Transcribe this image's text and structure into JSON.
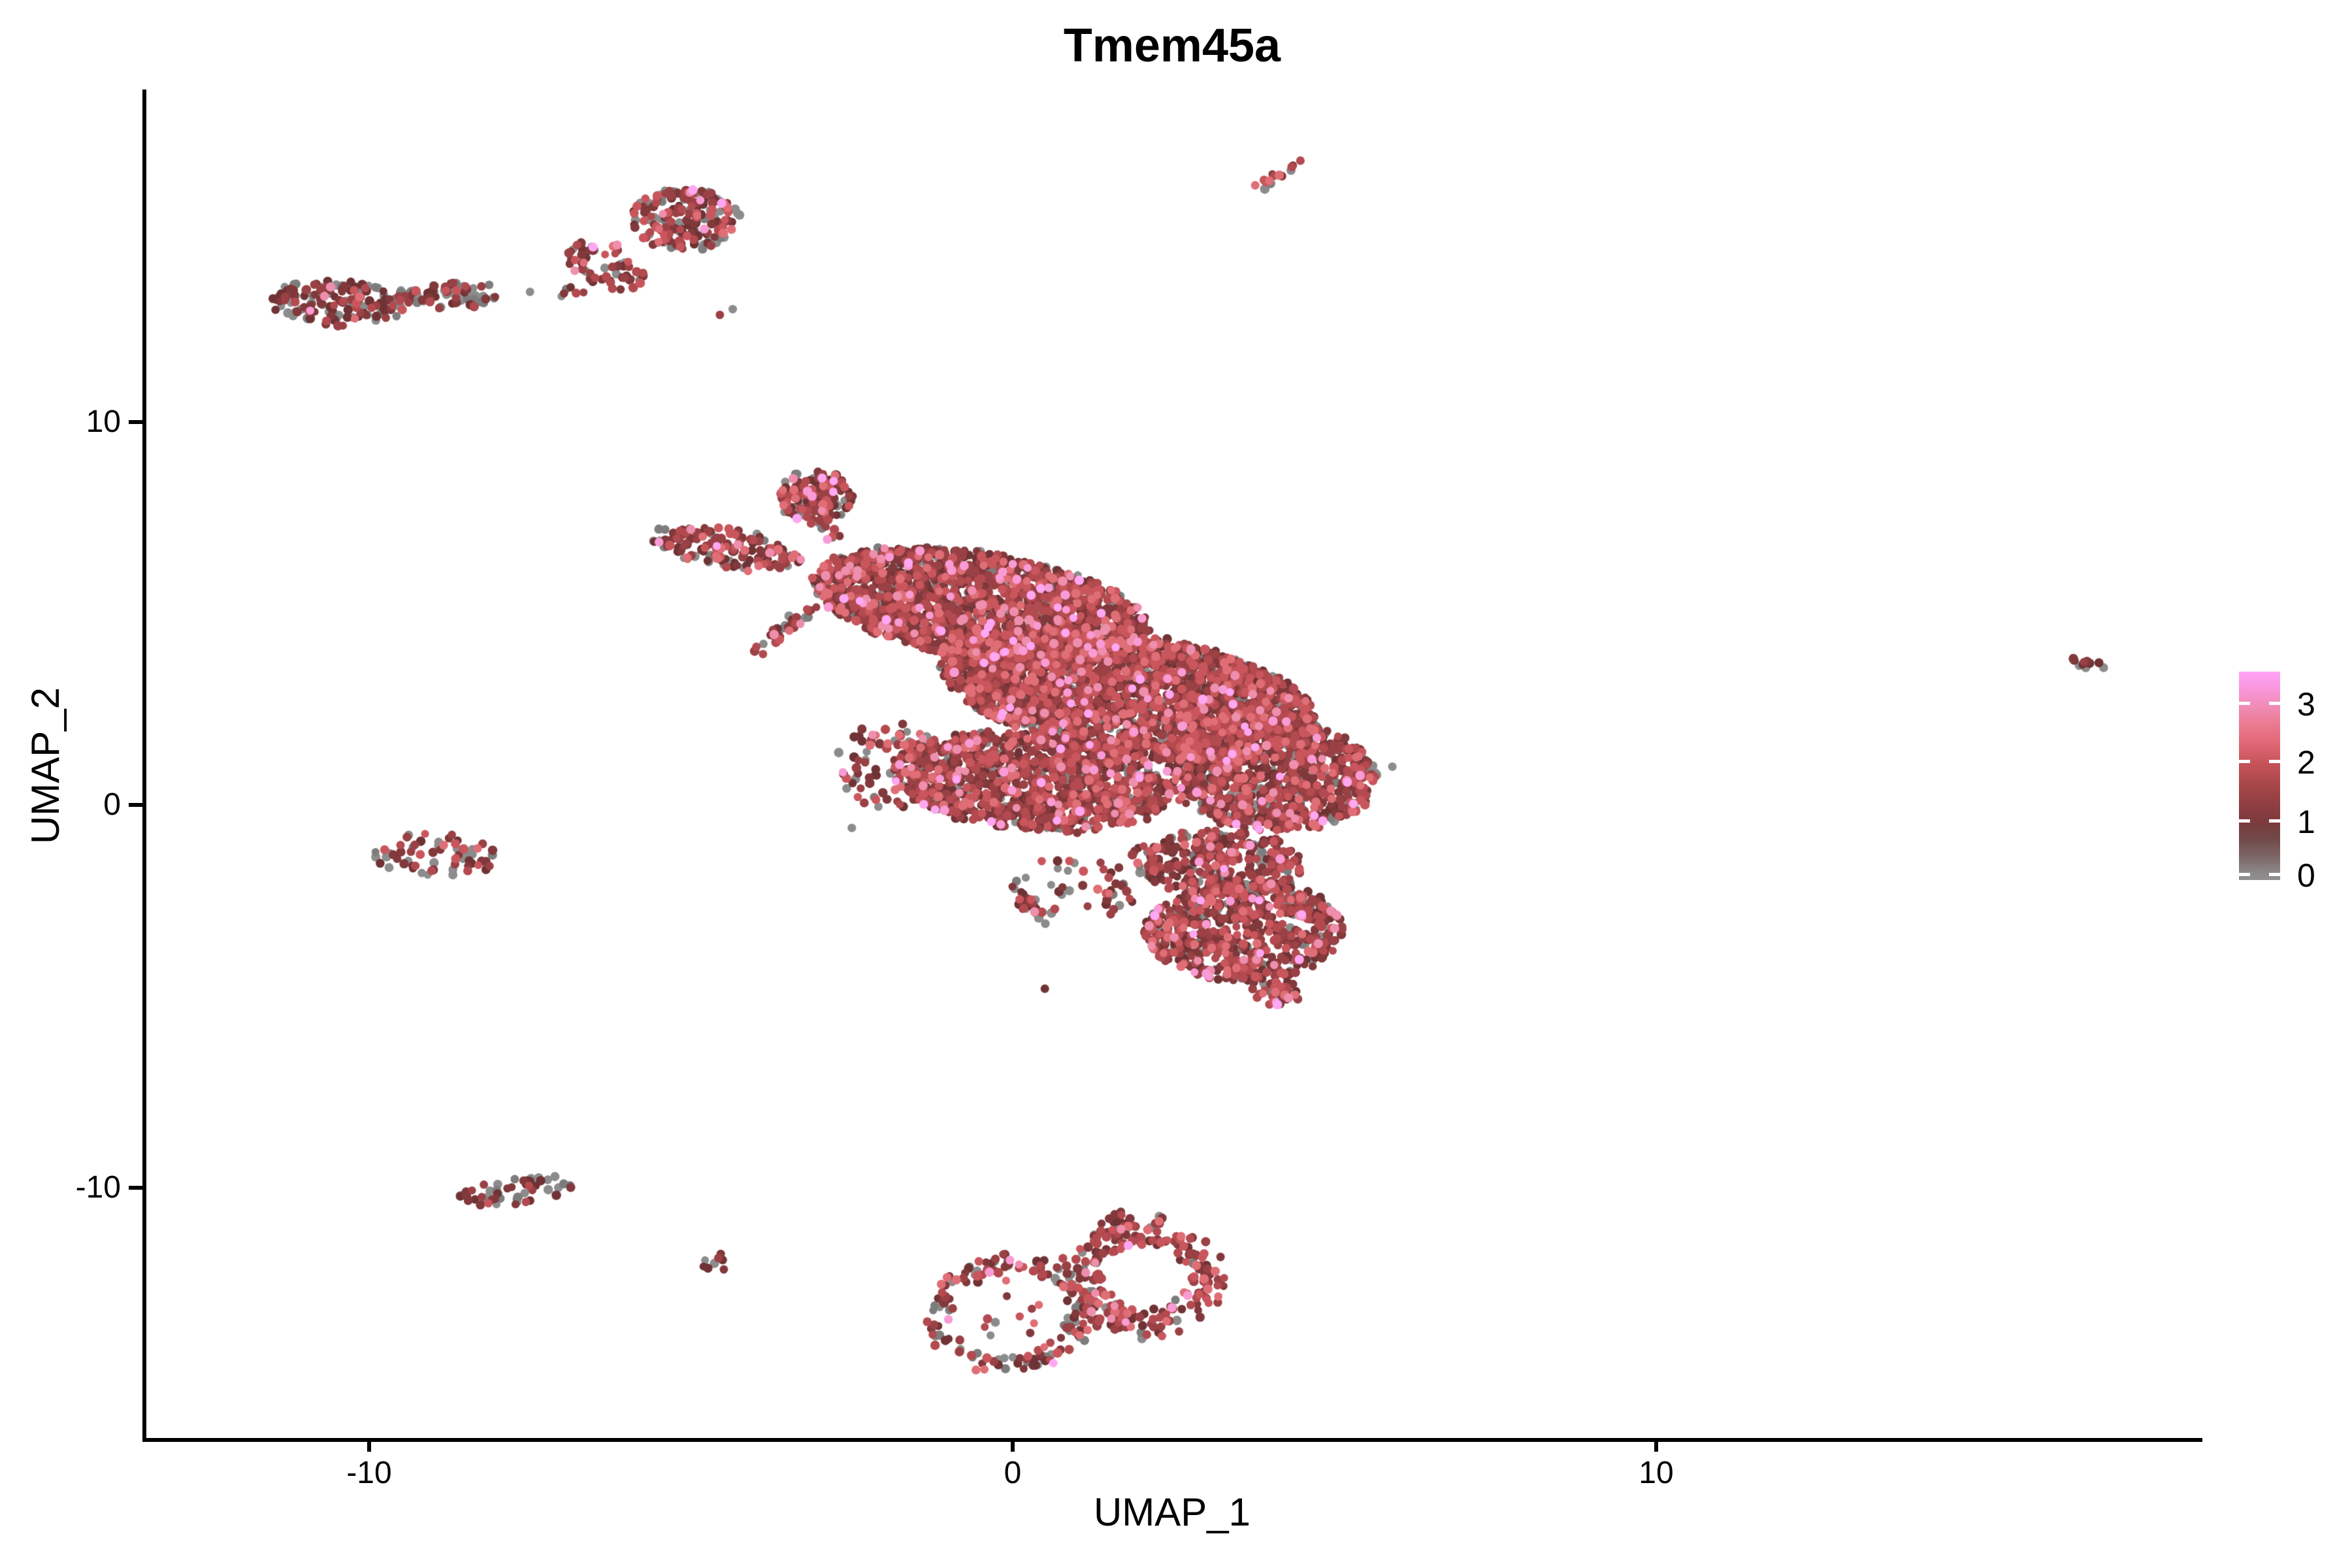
{
  "chart_data": {
    "type": "scatter",
    "title": "Tmem45a",
    "x_axis": {
      "label": "UMAP_1",
      "tick_labels": [
        "-10",
        "0",
        "10"
      ],
      "tick_values": [
        -10,
        0,
        10
      ],
      "range": [
        -13.5,
        18.5
      ]
    },
    "y_axis": {
      "label": "UMAP_2",
      "tick_labels": [
        "10",
        "0",
        "-10"
      ],
      "tick_values": [
        10,
        0,
        -10
      ],
      "range": [
        -16.6,
        18.7
      ]
    },
    "legend": {
      "tick_labels": [
        "3",
        "2",
        "1",
        "0"
      ],
      "tick_values": [
        3,
        2,
        1,
        0
      ],
      "gradient": [
        [
          0.0,
          "#FFA4F8"
        ],
        [
          0.08,
          "#F997DE"
        ],
        [
          0.16,
          "#F18DB9"
        ],
        [
          0.24,
          "#EC7D96"
        ],
        [
          0.33,
          "#E36A79"
        ],
        [
          0.44,
          "#C65459"
        ],
        [
          0.55,
          "#A64649"
        ],
        [
          0.66,
          "#8B3D40"
        ],
        [
          0.72,
          "#7C3A3C"
        ],
        [
          0.8,
          "#714948"
        ],
        [
          0.88,
          "#7B6363"
        ],
        [
          0.96,
          "#8C8687"
        ],
        [
          1.0,
          "#909090"
        ]
      ]
    },
    "seed": 42,
    "point_radius_px": 6.5,
    "palette": [
      "#8C8C8C",
      "#7D7D7D",
      "#703335",
      "#82393C",
      "#9A4145",
      "#B34A4F",
      "#C9565C",
      "#E06E76",
      "#EE8FAE",
      "#F99BD4",
      "#FEA7F2"
    ],
    "color_profiles": {
      "main": [
        0.11,
        0.06,
        0.17,
        0.21,
        0.16,
        0.12,
        0.08,
        0.05,
        0.02,
        0.013,
        0.007
      ],
      "greyheavy": [
        0.32,
        0.18,
        0.16,
        0.16,
        0.08,
        0.05,
        0.025,
        0.015,
        0.005,
        0.003,
        0.002
      ],
      "mixed": [
        0.2,
        0.1,
        0.17,
        0.18,
        0.12,
        0.1,
        0.07,
        0.04,
        0.01,
        0.007,
        0.003
      ],
      "redheavy": [
        0.06,
        0.04,
        0.12,
        0.16,
        0.18,
        0.18,
        0.14,
        0.08,
        0.02,
        0.013,
        0.007
      ],
      "darkgrey": [
        0.28,
        0.07,
        0.25,
        0.22,
        0.1,
        0.05,
        0.02,
        0.005,
        0.003,
        0.001,
        0.001
      ]
    },
    "clusters": [
      {
        "id": "topleft-band-dense",
        "shape": "ellipse",
        "cx": -10.5,
        "cy": 13.1,
        "rx": 1.0,
        "ry": 0.6,
        "rot": -8,
        "n": 150,
        "profile": "greyheavy"
      },
      {
        "id": "topleft-band-tail",
        "shape": "ellipse",
        "cx": -8.8,
        "cy": 13.3,
        "rx": 0.85,
        "ry": 0.32,
        "rot": 4,
        "n": 85,
        "profile": "greyheavy"
      },
      {
        "id": "topmid-blob",
        "shape": "ellipse",
        "cx": -5.1,
        "cy": 15.3,
        "rx": 0.85,
        "ry": 0.8,
        "rot": 20,
        "n": 200,
        "profile": "mixed"
      },
      {
        "id": "topmid-tail",
        "shape": "ellipse",
        "cx": -6.3,
        "cy": 14.1,
        "rx": 0.5,
        "ry": 0.75,
        "rot": 40,
        "n": 60,
        "profile": "mixed"
      },
      {
        "id": "topmid-tip",
        "shape": "ellipse",
        "cx": -6.8,
        "cy": 13.3,
        "rx": 0.25,
        "ry": 0.2,
        "rot": 0,
        "n": 6,
        "profile": "mixed"
      },
      {
        "id": "top-streak",
        "shape": "line",
        "x1": 3.8,
        "y1": 16.05,
        "x2": 4.45,
        "y2": 16.85,
        "w": 0.09,
        "n": 14,
        "profile": "redheavy"
      },
      {
        "id": "far-right",
        "shape": "ellipse",
        "cx": 16.7,
        "cy": 3.65,
        "rx": 0.3,
        "ry": 0.2,
        "rot": -25,
        "n": 10,
        "profile": "darkgrey"
      },
      {
        "id": "left-mid",
        "shape": "ellipse",
        "cx": -9.0,
        "cy": -1.3,
        "rx": 1.0,
        "ry": 0.55,
        "rot": -5,
        "n": 62,
        "profile": "mixed"
      },
      {
        "id": "bottom-left",
        "shape": "ellipse",
        "cx": -7.7,
        "cy": -10.1,
        "rx": 0.9,
        "ry": 0.35,
        "rot": 10,
        "n": 52,
        "profile": "greyheavy"
      },
      {
        "id": "bottom-tiny",
        "shape": "ellipse",
        "cx": -4.67,
        "cy": -11.95,
        "rx": 0.22,
        "ry": 0.26,
        "rot": 0,
        "n": 9,
        "profile": "darkgrey"
      },
      {
        "id": "ring-left",
        "shape": "ring",
        "cx": -0.05,
        "cy": -13.3,
        "rx": 1.3,
        "ry": 1.55,
        "rot": -10,
        "inner": 0.72,
        "n": 155,
        "profile": "mixed"
      },
      {
        "id": "ring-left-inner",
        "shape": "ellipse",
        "cx": -0.1,
        "cy": -13.1,
        "rx": 0.75,
        "ry": 0.9,
        "rot": 0,
        "n": 12,
        "profile": "mixed"
      },
      {
        "id": "ring-right",
        "shape": "ring",
        "cx": 2.05,
        "cy": -12.35,
        "rx": 1.3,
        "ry": 1.65,
        "rot": 8,
        "inner": 0.52,
        "n": 235,
        "profile": "redheavy"
      },
      {
        "id": "ring-neck",
        "shape": "line",
        "x1": 1.55,
        "y1": -10.6,
        "x2": 1.85,
        "y2": -11.4,
        "w": 0.16,
        "n": 20,
        "profile": "mixed"
      },
      {
        "id": "main-arm",
        "shape": "ellipse",
        "cx": -4.45,
        "cy": 6.7,
        "rx": 1.2,
        "ry": 0.5,
        "rot": -15,
        "n": 150,
        "profile": "main"
      },
      {
        "id": "main-top-blob",
        "shape": "ellipse",
        "cx": -3.05,
        "cy": 8.05,
        "rx": 0.58,
        "ry": 0.7,
        "rot": 0,
        "n": 145,
        "profile": "main"
      },
      {
        "id": "main-blob-bridge",
        "shape": "line",
        "x1": -3.0,
        "y1": 7.4,
        "x2": -2.7,
        "y2": 6.9,
        "w": 0.12,
        "n": 10,
        "profile": "main"
      },
      {
        "id": "main-streak",
        "shape": "line",
        "x1": -4.05,
        "y1": 3.95,
        "x2": -3.1,
        "y2": 5.2,
        "w": 0.12,
        "n": 32,
        "profile": "main"
      },
      {
        "id": "main-band-upper",
        "shape": "ellipse",
        "cx": -0.5,
        "cy": 5.2,
        "rx": 2.7,
        "ry": 1.35,
        "rot": -18,
        "n": 1900,
        "profile": "main"
      },
      {
        "id": "main-band-mid",
        "shape": "ellipse",
        "cx": 1.8,
        "cy": 2.9,
        "rx": 3.0,
        "ry": 1.55,
        "rot": -18,
        "n": 2600,
        "profile": "main"
      },
      {
        "id": "main-right",
        "shape": "ellipse",
        "cx": 4.0,
        "cy": 0.8,
        "rx": 1.65,
        "ry": 1.45,
        "rot": -20,
        "n": 950,
        "profile": "main"
      },
      {
        "id": "main-lower-left",
        "shape": "ellipse",
        "cx": 0.3,
        "cy": 0.6,
        "rx": 2.2,
        "ry": 1.25,
        "rot": -10,
        "n": 1150,
        "profile": "main"
      },
      {
        "id": "main-bridge",
        "shape": "ellipse",
        "cx": 3.2,
        "cy": -1.5,
        "rx": 1.35,
        "ry": 0.85,
        "rot": -5,
        "n": 320,
        "profile": "main"
      },
      {
        "id": "main-lower-lobe",
        "shape": "ellipse",
        "cx": 3.6,
        "cy": -3.3,
        "rx": 1.55,
        "ry": 1.3,
        "rot": 5,
        "n": 680,
        "profile": "main"
      },
      {
        "id": "main-lower-tip",
        "shape": "ellipse",
        "cx": 4.1,
        "cy": -4.9,
        "rx": 0.35,
        "ry": 0.3,
        "rot": 0,
        "n": 50,
        "profile": "redheavy"
      },
      {
        "id": "main-left-trail",
        "shape": "ellipse",
        "cx": -1.85,
        "cy": 1.0,
        "rx": 0.85,
        "ry": 1.15,
        "rot": 0,
        "n": 90,
        "profile": "mixed"
      },
      {
        "id": "main-bottom-spur",
        "shape": "line",
        "x1": 0.1,
        "y1": -2.2,
        "x2": 0.4,
        "y2": -3.0,
        "w": 0.14,
        "n": 22,
        "profile": "mixed"
      },
      {
        "id": "main-sparse-below",
        "shape": "ellipse",
        "cx": 0.95,
        "cy": -2.2,
        "rx": 1.1,
        "ry": 0.8,
        "rot": 0,
        "n": 45,
        "profile": "mixed"
      }
    ],
    "singles": [
      [
        -7.5,
        13.4,
        0
      ],
      [
        -4.55,
        12.8,
        4
      ],
      [
        -4.35,
        12.95,
        0
      ],
      [
        0.5,
        -4.8,
        2
      ],
      [
        -2.5,
        -0.6,
        0
      ],
      [
        5.9,
        1.0,
        0
      ]
    ]
  }
}
